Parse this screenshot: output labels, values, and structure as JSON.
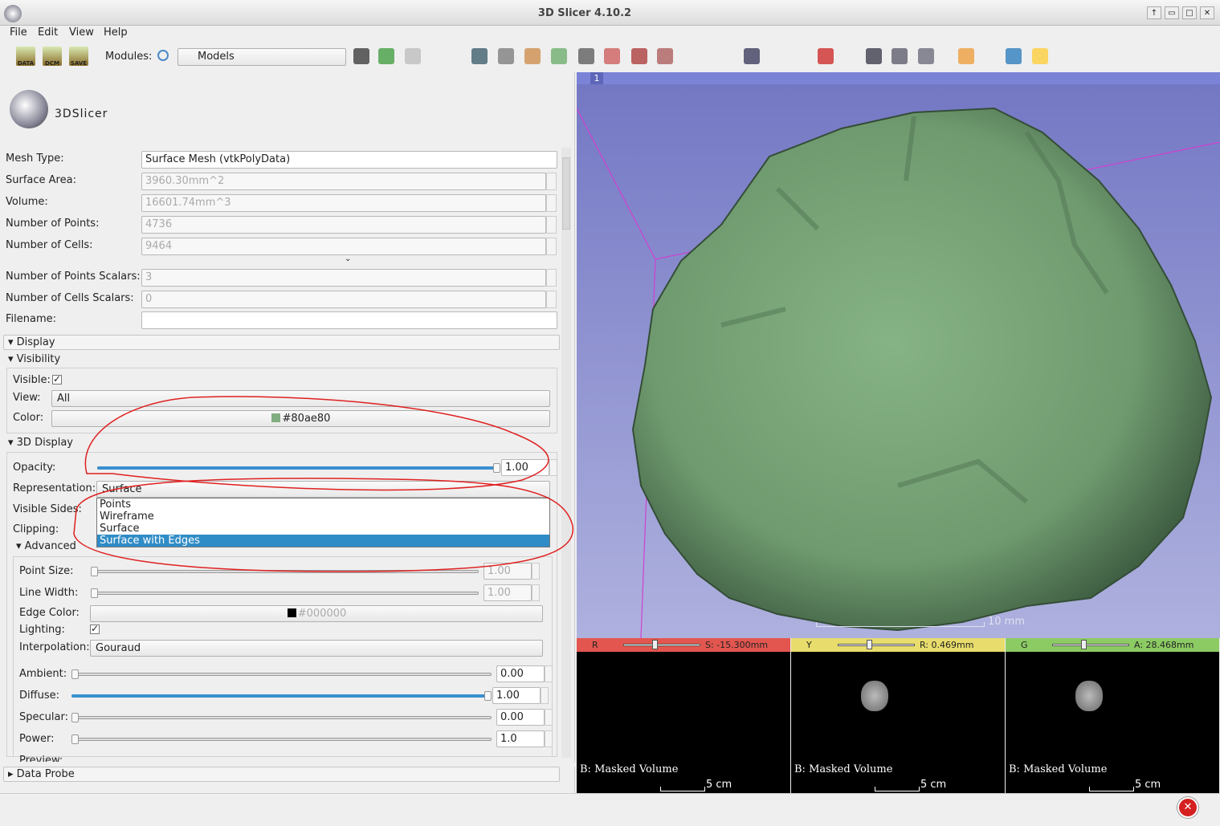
{
  "window": {
    "title": "3D Slicer 4.10.2"
  },
  "menu": [
    "File",
    "Edit",
    "View",
    "Help"
  ],
  "toolbar": {
    "buttons": [
      "DATA",
      "DCM",
      "SAVE"
    ],
    "modules_label": "Modules:",
    "module": "Models"
  },
  "logo": "3DSlicer",
  "info": {
    "rows": [
      {
        "label": "Mesh Type:",
        "value": "Surface Mesh (vtkPolyData)"
      },
      {
        "label": "Surface Area:",
        "value": "3960.30mm^2"
      },
      {
        "label": "Volume:",
        "value": "16601.74mm^3"
      },
      {
        "label": "Number of Points:",
        "value": "4736"
      },
      {
        "label": "Number of Cells:",
        "value": "9464"
      },
      {
        "label": "Number of Points Scalars:",
        "value": "3"
      },
      {
        "label": "Number of Cells Scalars:",
        "value": "0"
      },
      {
        "label": "Filename:",
        "value": ""
      }
    ]
  },
  "display": {
    "title": "Display",
    "visibility": "Visibility",
    "visible_label": "Visible:",
    "view_label": "View:",
    "view": "All",
    "color_label": "Color:",
    "color": "#80ae80",
    "display3d": "3D Display",
    "opacity_label": "Opacity:",
    "opacity": "1.00",
    "representation_label": "Representation:",
    "representation": "Surface",
    "options": [
      "Points",
      "Wireframe",
      "Surface",
      "Surface with Edges"
    ],
    "visible_sides_label": "Visible Sides:",
    "clipping_label": "Clipping:",
    "advanced": "Advanced",
    "point_size_label": "Point Size:",
    "point_size": "1.00",
    "line_width_label": "Line Width:",
    "line_width": "1.00",
    "edge_color_label": "Edge Color:",
    "edge_color": "#000000",
    "lighting_label": "Lighting:",
    "interpolation_label": "Interpolation:",
    "interpolation": "Gouraud",
    "ambient_label": "Ambient:",
    "ambient": "0.00",
    "diffuse_label": "Diffuse:",
    "diffuse": "1.00",
    "specular_label": "Specular:",
    "specular": "0.00",
    "power_label": "Power:",
    "power": "1.0",
    "preview_label": "Preview:"
  },
  "data_probe": "Data Probe",
  "view3d": {
    "number": "1",
    "scale": "10 mm"
  },
  "slices": [
    {
      "letter": "R",
      "offset": "S: -15.300mm",
      "label": "B: Masked Volume",
      "scale": "5 cm"
    },
    {
      "letter": "Y",
      "offset": "R: 0.469mm",
      "label": "B: Masked Volume",
      "scale": "5 cm"
    },
    {
      "letter": "G",
      "offset": "A: 28.468mm",
      "label": "B: Masked Volume",
      "scale": "5 cm"
    }
  ]
}
